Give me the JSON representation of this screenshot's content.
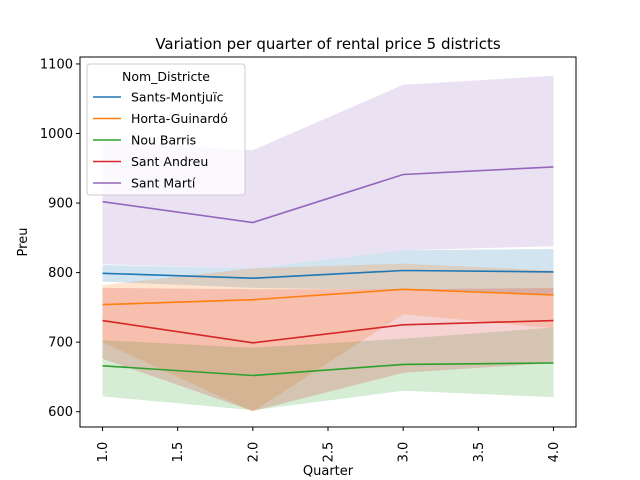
{
  "chart_data": {
    "type": "line",
    "title": "Variation per quarter of rental price 5 districts",
    "xlabel": "Quarter",
    "ylabel": "Preu",
    "xlim": [
      0.85,
      4.15
    ],
    "ylim": [
      578,
      1110
    ],
    "x": [
      1,
      2,
      3,
      4
    ],
    "xticks": [
      "1.0",
      "1.5",
      "2.0",
      "2.5",
      "3.0",
      "3.5",
      "4.0"
    ],
    "xtick_values": [
      1.0,
      1.5,
      2.0,
      2.5,
      3.0,
      3.5,
      4.0
    ],
    "yticks": [
      "600",
      "700",
      "800",
      "900",
      "1000",
      "1100"
    ],
    "ytick_values": [
      600,
      700,
      800,
      900,
      1000,
      1100
    ],
    "grid": false,
    "legend": {
      "title": "Nom_Districte",
      "placement": "top-left"
    },
    "series": [
      {
        "name": "Sants-Montjuïc",
        "color": "#1f77b4",
        "values": [
          799,
          792,
          803,
          801
        ],
        "lower": [
          787,
          778,
          775,
          768
        ],
        "upper": [
          811,
          806,
          832,
          834
        ]
      },
      {
        "name": "Horta-Guinardó",
        "color": "#ff7f0e",
        "values": [
          754,
          761,
          776,
          768
        ],
        "lower": [
          700,
          600,
          740,
          720
        ],
        "upper": [
          782,
          806,
          813,
          803
        ]
      },
      {
        "name": "Nou Barris",
        "color": "#2ca02c",
        "values": [
          666,
          652,
          668,
          670
        ],
        "lower": [
          622,
          602,
          630,
          621
        ],
        "upper": [
          703,
          692,
          705,
          721
        ]
      },
      {
        "name": "Sant Andreu",
        "color": "#d62728",
        "values": [
          731,
          699,
          725,
          731
        ],
        "lower": [
          676,
          601,
          656,
          670
        ],
        "upper": [
          778,
          776,
          776,
          778
        ]
      },
      {
        "name": "Sant Martí",
        "color": "#9467bd",
        "values": [
          902,
          872,
          941,
          952
        ],
        "lower": [
          812,
          806,
          832,
          838
        ],
        "upper": [
          988,
          976,
          1070,
          1083
        ]
      }
    ]
  }
}
